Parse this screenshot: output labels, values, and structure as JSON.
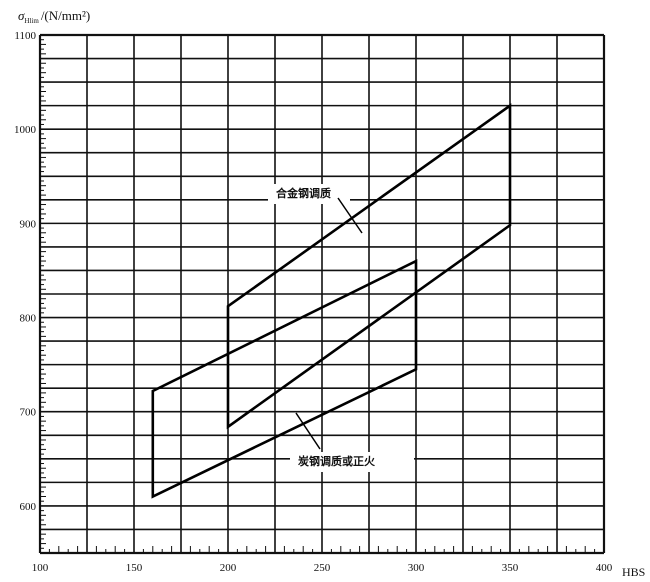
{
  "chart_data": {
    "type": "line",
    "title": "",
    "ylabel_symbol": "σ",
    "ylabel_subscript": "Hlim",
    "ylabel_unit": "/(N/mm²)",
    "xlabel": "HBS",
    "xlim": [
      100,
      400
    ],
    "ylim": [
      550,
      1100
    ],
    "x_ticks": [
      "100",
      "150",
      "200",
      "250",
      "300",
      "350",
      "400"
    ],
    "y_ticks": [
      "600",
      "700",
      "800",
      "900",
      "1000",
      "1100"
    ],
    "grid": true,
    "grid_step": {
      "x": 25,
      "y": 25
    },
    "series": [
      {
        "name": "合金钢调质",
        "polygon": [
          [
            200,
            812
          ],
          [
            350,
            1025
          ],
          [
            350,
            898
          ],
          [
            200,
            684
          ]
        ]
      },
      {
        "name": "炭钢调质或正火",
        "polygon": [
          [
            160,
            722
          ],
          [
            300,
            860
          ],
          [
            300,
            745
          ],
          [
            160,
            610
          ]
        ]
      }
    ]
  }
}
